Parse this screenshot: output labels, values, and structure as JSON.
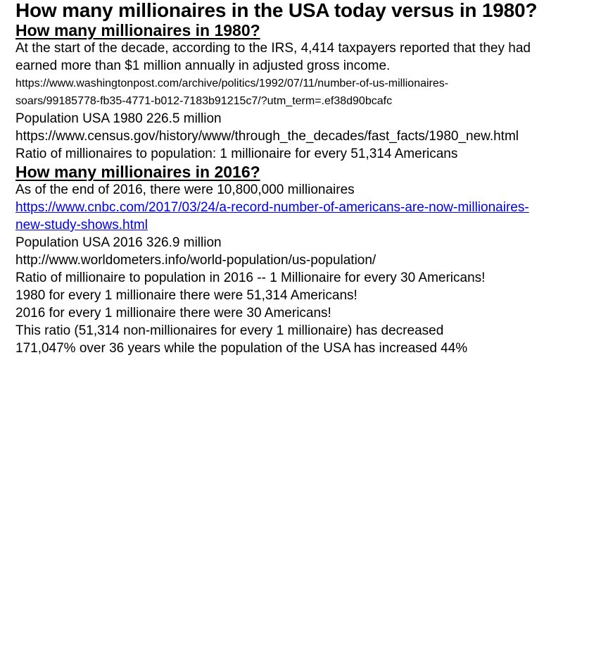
{
  "colors": {
    "text": "#000000",
    "link_blue": "#0000EE",
    "background": "#ffffff"
  },
  "title": "How many millionaires in the USA today versus in 1980?",
  "section_1980": {
    "heading": "How many millionaires in 1980?",
    "intro_lines": [
      "At the start of the decade, according to the IRS, 4,414 taxpayers reported that they had",
      "earned more than $1 million annually in adjusted gross income."
    ],
    "source_url_lines": [
      "https://www.washingtonpost.com/archive/politics/1992/07/11/number-of-us-millionaires-",
      "soars/99185778-fb35-4771-b012-7183b91215c7/?utm_term=.ef38d90bcafc"
    ],
    "population": "Population USA 1980 226.5 million",
    "population_url": "https://www.census.gov/history/www/through_the_decades/fast_facts/1980_new.html",
    "ratio": "Ratio of millionaires to population: 1 millionaire for every 51,314 Americans"
  },
  "section_2016": {
    "heading": "How many millionaires in 2016?",
    "intro": "As of the end of 2016, there were 10,800,000 millionaires",
    "link_lines": [
      "https://www.cnbc.com/2017/03/24/a-record-number-of-americans-are-now-millionaires-",
      "new-study-shows.html"
    ],
    "population": "Population USA 2016 326.9 million",
    "population_url": "http://www.worldometers.info/world-population/us-population/",
    "ratio": "Ratio of millionaire to population in 2016 -- 1 Millionaire for every 30 Americans!"
  },
  "comparison": {
    "year_1980": "1980 for every 1 millionaire there were 51,314 Americans!",
    "year_2016": "2016 for every 1 millionaire there were 30 Americans!"
  },
  "conclusion": {
    "line_1": "This ratio (51,314 non-millionaires for every 1 millionaire) has decreased",
    "line_2": "171,047% over 36 years while the population of the USA has increased 44%"
  }
}
